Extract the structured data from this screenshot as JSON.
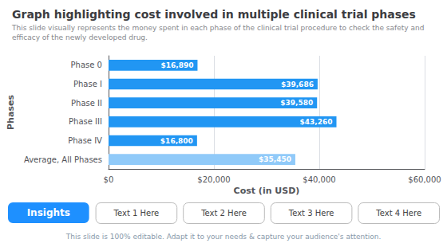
{
  "chart_data": {
    "type": "bar",
    "orientation": "horizontal",
    "title": "Graph highlighting cost involved in multiple clinical trial phases",
    "subtitle": "This slide visually represents the money spent in each phase of the clinical trial procedure to check the safety and efficacy of the newly developed drug.",
    "categories": [
      "Average, All Phases",
      "Phase IV",
      "Phase III",
      "Phase II",
      "Phase I",
      "Phase 0"
    ],
    "values": [
      35450,
      16800,
      43260,
      39580,
      39686,
      16890
    ],
    "value_labels": [
      "$35,450",
      "$16,800",
      "$43,260",
      "$39,580",
      "$39,686",
      "$16,890"
    ],
    "data_labels": true,
    "colors": [
      "#90caf9",
      "#2196f3",
      "#2196f3",
      "#2196f3",
      "#2196f3",
      "#2196f3"
    ],
    "xlabel": "Cost (in USD)",
    "ylabel": "Phases",
    "xlim": [
      0,
      60000
    ],
    "xticks": [
      {
        "value": 0,
        "label": "$0"
      },
      {
        "value": 20000,
        "label": "$20,000"
      },
      {
        "value": 40000,
        "label": "$40,000"
      },
      {
        "value": 60000,
        "label": "$60,000"
      }
    ],
    "grid": true,
    "annotations": [
      "Insights",
      "Text 1 Here",
      "Text 2 Here",
      "Text 3 Here",
      "Text 4 Here"
    ],
    "footer": "This slide is 100% editable. Adapt it to your needs & capture your audience's attention."
  }
}
